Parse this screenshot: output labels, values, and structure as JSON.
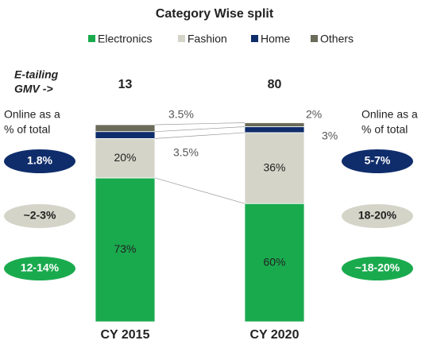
{
  "chart_data": {
    "type": "bar",
    "stacked": true,
    "title": "Category Wise split",
    "categories": [
      "CY 2015",
      "CY 2020"
    ],
    "series": [
      {
        "name": "Electronics",
        "color": "#1aaa4e",
        "values": [
          73,
          60
        ],
        "value_labels": [
          "73%",
          "60%"
        ]
      },
      {
        "name": "Fashion",
        "color": "#d4d4c8",
        "values": [
          20,
          36
        ],
        "value_labels": [
          "20%",
          "36%"
        ]
      },
      {
        "name": "Home",
        "color": "#0f2d6b",
        "values": [
          3.5,
          3
        ],
        "value_labels": [
          "3.5%",
          "3%"
        ]
      },
      {
        "name": "Others",
        "color": "#6b6b5a",
        "values": [
          3.5,
          2
        ],
        "value_labels": [
          "3.5%",
          "2%"
        ]
      }
    ],
    "ylim": [
      0,
      100
    ],
    "gmv_label": [
      "E-tailing",
      "GMV ->"
    ],
    "gmv": [
      13,
      80
    ],
    "share_label": [
      "Online as a",
      "% of total"
    ],
    "share": [
      [
        "1.8%",
        "~2-3%",
        "12-14%"
      ],
      [
        "5-7%",
        "18-20%",
        "~18-20%"
      ]
    ]
  }
}
